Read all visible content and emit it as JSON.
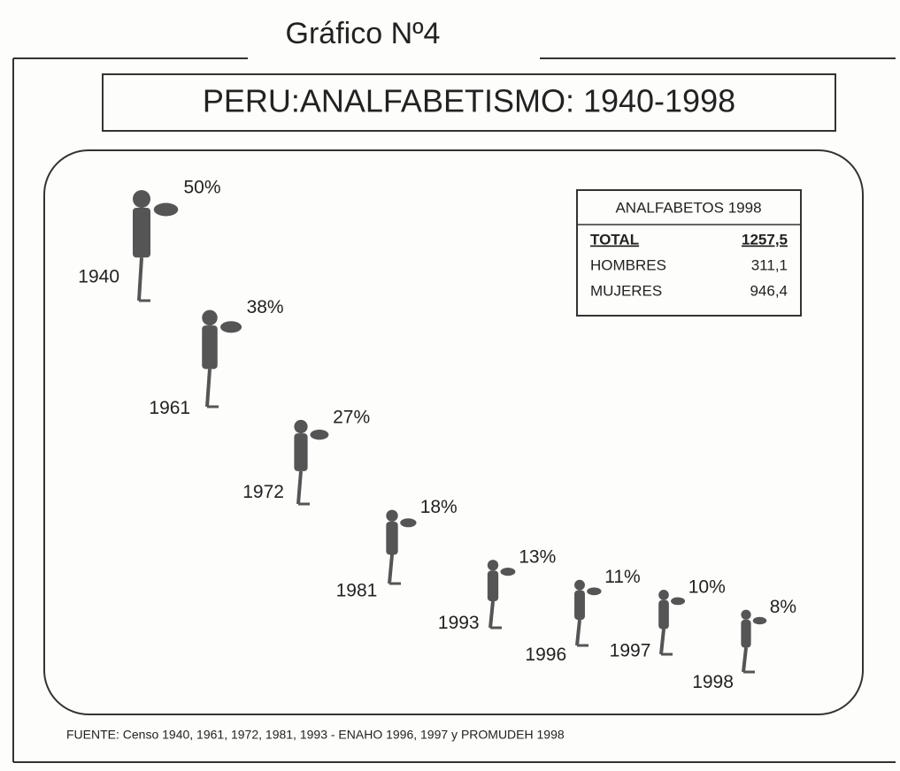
{
  "chart_data": {
    "type": "pictograph",
    "title": "Gráfico Nº4",
    "subtitle": "PERU:ANALFABETISMO: 1940-1998",
    "categories": [
      "1940",
      "1961",
      "1972",
      "1981",
      "1993",
      "1996",
      "1997",
      "1998"
    ],
    "values": [
      50,
      38,
      27,
      18,
      13,
      11,
      10,
      8
    ],
    "value_labels": [
      "50%",
      "38%",
      "27%",
      "18%",
      "13%",
      "11%",
      "10%",
      "8%"
    ],
    "color": "#555555",
    "source": "FUENTE: Censo 1940, 1961, 1972, 1981, 1993 - ENAHO 1996, 1997 y PROMUDEH 1998"
  },
  "inset_table": {
    "title": "ANALFABETOS 1998",
    "rows": [
      [
        "TOTAL",
        "1257,5"
      ],
      [
        "HOMBRES",
        "311,1"
      ],
      [
        "MUJERES",
        "946,4"
      ]
    ]
  }
}
